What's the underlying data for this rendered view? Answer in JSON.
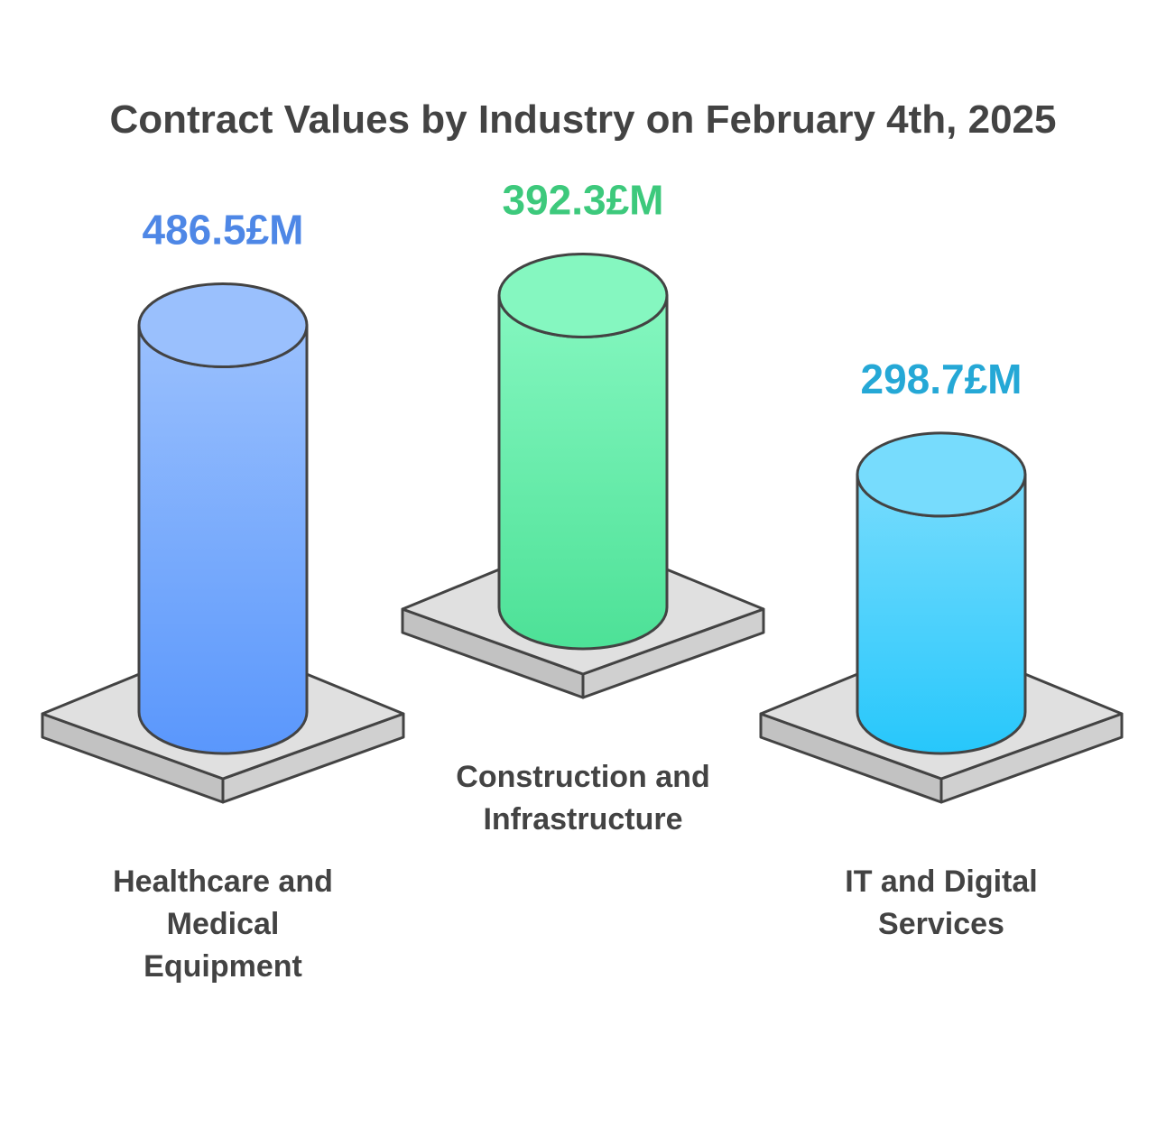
{
  "chart_data": {
    "type": "bar",
    "title": "Contract Values by Industry on February 4th, 2025",
    "unit": "£M",
    "categories": [
      {
        "label_lines": [
          "Healthcare and",
          "Medical",
          "Equipment"
        ],
        "value": 486.5,
        "value_label": "486.5£M",
        "color": "#5a97fc",
        "color_top": "#9ac0fd",
        "label_color": "#4e87e6"
      },
      {
        "label_lines": [
          "Construction and",
          "Infrastructure"
        ],
        "value": 392.3,
        "value_label": "392.3£M",
        "color": "#4de197",
        "color_top": "#85f7c0",
        "label_color": "#3dc97c"
      },
      {
        "label_lines": [
          "IT and Digital",
          "Services"
        ],
        "value": 298.7,
        "value_label": "298.7£M",
        "color": "#27c7fb",
        "color_top": "#77dcfd",
        "label_color": "#25a8d6"
      }
    ]
  }
}
